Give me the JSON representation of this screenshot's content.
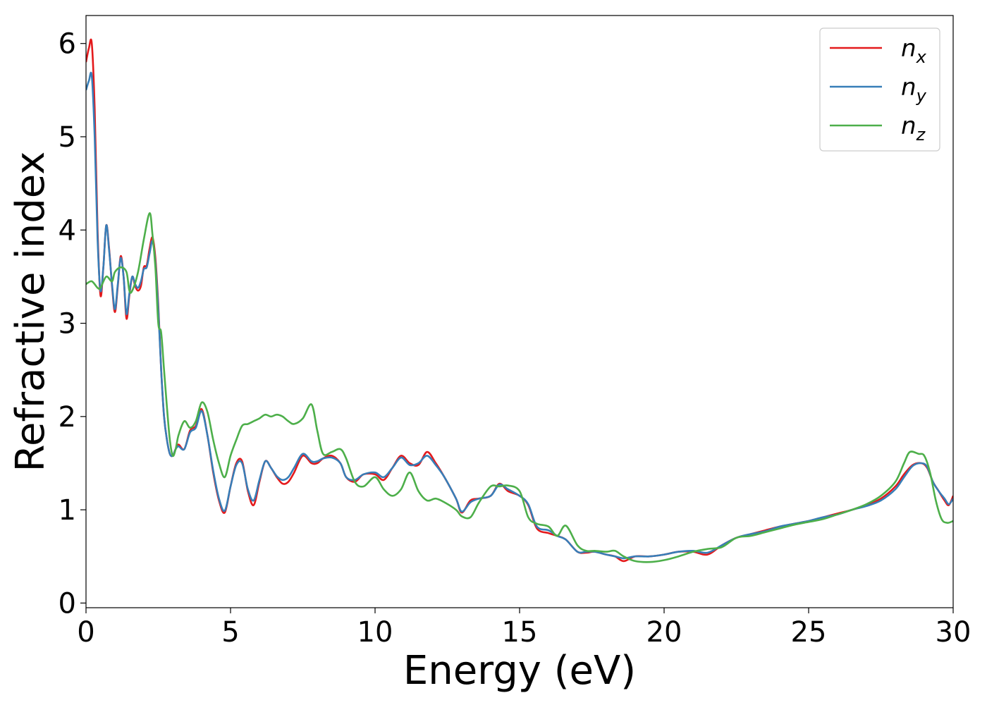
{
  "chart_data": {
    "type": "line",
    "xlabel": "Energy (eV)",
    "ylabel": "Refractive index",
    "xlim": [
      0,
      30
    ],
    "ylim": [
      -0.05,
      6.3
    ],
    "xticks": [
      0,
      5,
      10,
      15,
      20,
      25,
      30
    ],
    "yticks": [
      0,
      1,
      2,
      3,
      4,
      5,
      6
    ],
    "grid": false,
    "legend_position": "top-right",
    "series": [
      {
        "name": "n_x",
        "legend_base": "n",
        "legend_sub": "x",
        "color": "#e41a1c",
        "x": [
          0,
          0.1,
          0.2,
          0.3,
          0.4,
          0.5,
          0.6,
          0.7,
          0.8,
          0.9,
          1.0,
          1.1,
          1.2,
          1.3,
          1.4,
          1.5,
          1.6,
          1.7,
          1.8,
          1.9,
          2.0,
          2.1,
          2.2,
          2.3,
          2.4,
          2.5,
          2.6,
          2.7,
          2.8,
          2.9,
          3.0,
          3.1,
          3.2,
          3.4,
          3.6,
          3.8,
          4.0,
          4.2,
          4.4,
          4.6,
          4.8,
          5.0,
          5.2,
          5.4,
          5.6,
          5.8,
          6.0,
          6.2,
          6.4,
          6.6,
          6.8,
          7.0,
          7.2,
          7.5,
          7.8,
          8.0,
          8.2,
          8.5,
          8.8,
          9.0,
          9.3,
          9.6,
          10.0,
          10.3,
          10.6,
          10.9,
          11.2,
          11.5,
          11.8,
          12.1,
          12.4,
          12.8,
          13.0,
          13.3,
          13.6,
          14.0,
          14.3,
          14.6,
          15.0,
          15.3,
          15.6,
          16.0,
          16.3,
          16.6,
          17.0,
          17.3,
          17.6,
          18.0,
          18.3,
          18.6,
          19.0,
          19.5,
          20.0,
          20.5,
          21.0,
          21.5,
          22.0,
          22.5,
          23.0,
          23.5,
          24.0,
          24.5,
          25.0,
          25.5,
          26.0,
          26.5,
          27.0,
          27.5,
          28.0,
          28.3,
          28.6,
          28.9,
          29.1,
          29.3,
          29.5,
          29.7,
          29.85,
          30.0
        ],
        "y": [
          5.8,
          5.95,
          6.0,
          5.3,
          4.0,
          3.3,
          3.6,
          4.05,
          3.8,
          3.4,
          3.12,
          3.4,
          3.72,
          3.5,
          3.05,
          3.3,
          3.5,
          3.4,
          3.35,
          3.4,
          3.6,
          3.62,
          3.8,
          3.92,
          3.7,
          3.2,
          2.5,
          2.0,
          1.75,
          1.6,
          1.58,
          1.65,
          1.7,
          1.65,
          1.85,
          1.9,
          2.08,
          1.8,
          1.4,
          1.1,
          0.97,
          1.25,
          1.5,
          1.52,
          1.2,
          1.05,
          1.3,
          1.52,
          1.45,
          1.35,
          1.28,
          1.3,
          1.4,
          1.58,
          1.5,
          1.5,
          1.55,
          1.58,
          1.5,
          1.35,
          1.3,
          1.38,
          1.38,
          1.32,
          1.45,
          1.58,
          1.5,
          1.48,
          1.62,
          1.5,
          1.35,
          1.12,
          0.97,
          1.1,
          1.12,
          1.15,
          1.28,
          1.2,
          1.15,
          1.05,
          0.8,
          0.75,
          0.72,
          0.68,
          0.55,
          0.54,
          0.55,
          0.52,
          0.5,
          0.45,
          0.5,
          0.5,
          0.52,
          0.55,
          0.55,
          0.52,
          0.62,
          0.7,
          0.74,
          0.78,
          0.82,
          0.85,
          0.88,
          0.92,
          0.96,
          1.0,
          1.05,
          1.12,
          1.25,
          1.38,
          1.48,
          1.5,
          1.45,
          1.3,
          1.2,
          1.1,
          1.05,
          1.15
        ]
      },
      {
        "name": "n_y",
        "legend_base": "n",
        "legend_sub": "y",
        "color": "#377eb8",
        "x": [
          0,
          0.1,
          0.2,
          0.3,
          0.4,
          0.5,
          0.6,
          0.7,
          0.8,
          0.9,
          1.0,
          1.1,
          1.2,
          1.3,
          1.4,
          1.5,
          1.6,
          1.7,
          1.8,
          1.9,
          2.0,
          2.1,
          2.2,
          2.3,
          2.4,
          2.5,
          2.6,
          2.7,
          2.8,
          2.9,
          3.0,
          3.1,
          3.2,
          3.4,
          3.6,
          3.8,
          4.0,
          4.2,
          4.4,
          4.6,
          4.8,
          5.0,
          5.2,
          5.4,
          5.6,
          5.8,
          6.0,
          6.2,
          6.4,
          6.6,
          6.8,
          7.0,
          7.2,
          7.5,
          7.8,
          8.0,
          8.2,
          8.5,
          8.8,
          9.0,
          9.3,
          9.6,
          10.0,
          10.3,
          10.6,
          10.9,
          11.2,
          11.5,
          11.8,
          12.1,
          12.4,
          12.8,
          13.0,
          13.3,
          13.6,
          14.0,
          14.3,
          14.6,
          15.0,
          15.3,
          15.6,
          16.0,
          16.3,
          16.6,
          17.0,
          17.3,
          17.6,
          18.0,
          18.3,
          18.6,
          19.0,
          19.5,
          20.0,
          20.5,
          21.0,
          21.5,
          22.0,
          22.5,
          23.0,
          23.5,
          24.0,
          24.5,
          25.0,
          25.5,
          26.0,
          26.5,
          27.0,
          27.5,
          28.0,
          28.3,
          28.6,
          28.9,
          29.1,
          29.3,
          29.5,
          29.7,
          29.85,
          30.0
        ],
        "y": [
          5.5,
          5.6,
          5.65,
          5.0,
          3.9,
          3.35,
          3.6,
          4.05,
          3.78,
          3.42,
          3.15,
          3.42,
          3.7,
          3.5,
          3.1,
          3.32,
          3.5,
          3.42,
          3.38,
          3.45,
          3.58,
          3.6,
          3.75,
          3.88,
          3.65,
          3.15,
          2.5,
          2.0,
          1.75,
          1.6,
          1.58,
          1.65,
          1.68,
          1.65,
          1.83,
          1.88,
          2.06,
          1.8,
          1.42,
          1.12,
          0.99,
          1.25,
          1.48,
          1.5,
          1.22,
          1.1,
          1.32,
          1.52,
          1.45,
          1.36,
          1.32,
          1.35,
          1.45,
          1.6,
          1.52,
          1.52,
          1.55,
          1.56,
          1.5,
          1.35,
          1.32,
          1.38,
          1.4,
          1.35,
          1.45,
          1.56,
          1.48,
          1.5,
          1.58,
          1.48,
          1.35,
          1.12,
          0.98,
          1.08,
          1.12,
          1.15,
          1.27,
          1.22,
          1.15,
          1.06,
          0.82,
          0.78,
          0.72,
          0.68,
          0.55,
          0.55,
          0.55,
          0.52,
          0.5,
          0.48,
          0.5,
          0.5,
          0.52,
          0.55,
          0.56,
          0.54,
          0.62,
          0.7,
          0.74,
          0.77,
          0.82,
          0.85,
          0.88,
          0.92,
          0.95,
          1.0,
          1.04,
          1.1,
          1.22,
          1.35,
          1.47,
          1.5,
          1.46,
          1.3,
          1.2,
          1.12,
          1.06,
          1.12
        ]
      },
      {
        "name": "n_z",
        "legend_base": "n",
        "legend_sub": "z",
        "color": "#4daf4a",
        "x": [
          0,
          0.2,
          0.4,
          0.5,
          0.7,
          0.9,
          1.0,
          1.2,
          1.4,
          1.5,
          1.6,
          1.8,
          2.0,
          2.2,
          2.3,
          2.4,
          2.5,
          2.6,
          2.7,
          2.8,
          2.9,
          3.0,
          3.1,
          3.2,
          3.4,
          3.6,
          3.8,
          4.0,
          4.2,
          4.4,
          4.6,
          4.8,
          5.0,
          5.2,
          5.4,
          5.6,
          5.8,
          6.0,
          6.2,
          6.4,
          6.6,
          6.8,
          7.0,
          7.2,
          7.5,
          7.8,
          8.0,
          8.2,
          8.5,
          8.8,
          9.0,
          9.3,
          9.6,
          10.0,
          10.3,
          10.6,
          10.9,
          11.2,
          11.5,
          11.8,
          12.1,
          12.4,
          12.8,
          13.0,
          13.3,
          13.6,
          14.0,
          14.3,
          14.6,
          15.0,
          15.3,
          15.6,
          16.0,
          16.3,
          16.6,
          17.0,
          17.3,
          17.6,
          18.0,
          18.3,
          18.6,
          19.0,
          19.5,
          20.0,
          20.5,
          21.0,
          21.5,
          22.0,
          22.5,
          23.0,
          23.5,
          24.0,
          24.5,
          25.0,
          25.5,
          26.0,
          26.5,
          27.0,
          27.5,
          28.0,
          28.3,
          28.5,
          28.8,
          29.0,
          29.2,
          29.4,
          29.6,
          29.8,
          30.0
        ],
        "y": [
          3.42,
          3.45,
          3.38,
          3.38,
          3.5,
          3.45,
          3.55,
          3.6,
          3.55,
          3.35,
          3.35,
          3.55,
          3.9,
          4.18,
          3.95,
          3.6,
          3.0,
          2.9,
          2.5,
          2.1,
          1.75,
          1.58,
          1.65,
          1.8,
          1.95,
          1.88,
          1.95,
          2.15,
          2.05,
          1.75,
          1.5,
          1.35,
          1.58,
          1.75,
          1.9,
          1.92,
          1.95,
          1.98,
          2.02,
          2.0,
          2.02,
          2.0,
          1.95,
          1.92,
          1.98,
          2.13,
          1.85,
          1.6,
          1.62,
          1.65,
          1.55,
          1.3,
          1.25,
          1.35,
          1.22,
          1.15,
          1.22,
          1.4,
          1.2,
          1.1,
          1.12,
          1.08,
          1.0,
          0.93,
          0.92,
          1.08,
          1.25,
          1.25,
          1.26,
          1.2,
          0.92,
          0.85,
          0.82,
          0.72,
          0.83,
          0.62,
          0.56,
          0.56,
          0.55,
          0.56,
          0.5,
          0.45,
          0.44,
          0.46,
          0.5,
          0.55,
          0.58,
          0.6,
          0.7,
          0.72,
          0.76,
          0.8,
          0.84,
          0.87,
          0.9,
          0.95,
          1.0,
          1.06,
          1.15,
          1.3,
          1.5,
          1.62,
          1.6,
          1.58,
          1.4,
          1.1,
          0.9,
          0.86,
          0.88
        ]
      }
    ]
  }
}
